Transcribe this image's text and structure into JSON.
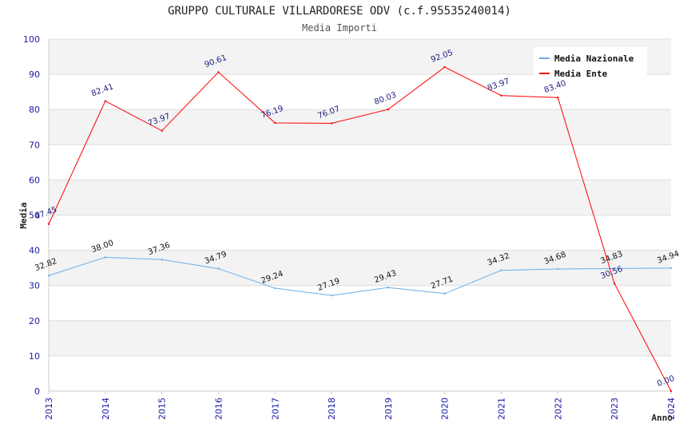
{
  "chart_data": {
    "type": "line",
    "title": "GRUPPO CULTURALE VILLARDORESE ODV (c.f.95535240014)",
    "subtitle": "Media Importi",
    "xlabel": "Anno",
    "ylabel": "Media",
    "ylim": [
      0,
      100
    ],
    "yticks": [
      0,
      10,
      20,
      30,
      40,
      50,
      60,
      70,
      80,
      90,
      100
    ],
    "categories": [
      "2013",
      "2014",
      "2015",
      "2016",
      "2017",
      "2018",
      "2019",
      "2020",
      "2021",
      "2022",
      "2023",
      "2024"
    ],
    "legend_position": "top-right",
    "grid": true,
    "series": [
      {
        "name": "Media Nazionale",
        "color": "#6aaee8",
        "values": [
          32.82,
          38.0,
          37.36,
          34.79,
          29.24,
          27.19,
          29.43,
          27.71,
          34.32,
          34.68,
          34.83,
          34.94
        ],
        "labels": [
          "32.82",
          "38.00",
          "37.36",
          "34.79",
          "29.24",
          "27.19",
          "29.43",
          "27.71",
          "34.32",
          "34.68",
          "34.83",
          "34.94"
        ]
      },
      {
        "name": "Media Ente",
        "color": "#ff0000",
        "values": [
          47.45,
          82.41,
          73.97,
          90.61,
          76.19,
          76.07,
          80.03,
          92.05,
          83.97,
          83.4,
          30.56,
          0.0
        ],
        "labels": [
          "47.45",
          "82.41",
          "73.97",
          "90.61",
          "76.19",
          "76.07",
          "80.03",
          "92.05",
          "83.97",
          "83.40",
          "30.56",
          "0.00"
        ]
      }
    ]
  }
}
